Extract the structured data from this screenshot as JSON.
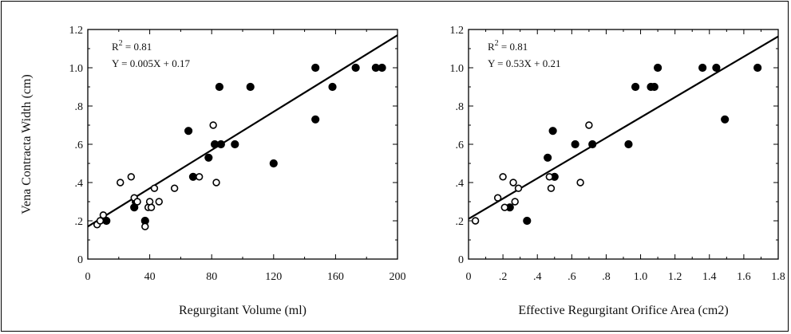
{
  "chart_data": [
    {
      "type": "scatter",
      "title": "",
      "xlabel": "Regurgitant Volume (ml)",
      "ylabel": "Vena Contracta Width (cm)",
      "xlim": [
        0,
        200
      ],
      "ylim": [
        0,
        1.2
      ],
      "x_ticks": [
        0,
        40,
        80,
        120,
        160,
        200
      ],
      "x_tick_labels": [
        "0",
        "40",
        "80",
        "120",
        "160",
        "200"
      ],
      "y_ticks": [
        0,
        0.2,
        0.4,
        0.6,
        0.8,
        1.0,
        1.2
      ],
      "y_tick_labels": [
        "0",
        ".2",
        ".4",
        ".6",
        ".8",
        "1.0",
        "1.2"
      ],
      "grid": false,
      "series": [
        {
          "marker": "filled",
          "x": [
            12,
            30,
            31,
            37,
            65,
            68,
            78,
            82,
            85,
            86,
            95,
            105,
            120,
            147,
            147,
            158,
            173,
            186,
            190
          ],
          "y": [
            0.2,
            0.27,
            0.3,
            0.2,
            0.67,
            0.43,
            0.53,
            0.6,
            0.9,
            0.6,
            0.6,
            0.9,
            0.5,
            1.0,
            0.73,
            0.9,
            1.0,
            1.0,
            1.0
          ]
        },
        {
          "marker": "open",
          "x": [
            6,
            8,
            10,
            21,
            28,
            30,
            32,
            37,
            39,
            40,
            41,
            43,
            46,
            56,
            72,
            81,
            83
          ],
          "y": [
            0.18,
            0.2,
            0.23,
            0.4,
            0.43,
            0.32,
            0.3,
            0.17,
            0.27,
            0.3,
            0.27,
            0.37,
            0.3,
            0.37,
            0.43,
            0.7,
            0.4
          ]
        }
      ],
      "regression": {
        "slope": 0.005,
        "intercept": 0.17
      },
      "annotations": {
        "r2_prefix": "R",
        "r2_sup": "2",
        "r2_value": "= 0.81",
        "equation": "Y = 0.005X + 0.17"
      }
    },
    {
      "type": "scatter",
      "title": "",
      "xlabel": "Effective Regurgitant Orifice Area (cm2)",
      "ylabel": "",
      "xlim": [
        0,
        1.8
      ],
      "ylim": [
        0,
        1.2
      ],
      "x_ticks": [
        0,
        0.2,
        0.4,
        0.6,
        0.8,
        1.0,
        1.2,
        1.4,
        1.6,
        1.8
      ],
      "x_tick_labels": [
        "0",
        ".2",
        ".4",
        ".6",
        ".8",
        "1.0",
        "1.2",
        "1.4",
        "1.6",
        "1.8"
      ],
      "y_ticks": [
        0,
        0.2,
        0.4,
        0.6,
        0.8,
        1.0,
        1.2
      ],
      "y_tick_labels": [
        "0",
        ".2",
        ".4",
        ".6",
        ".8",
        "1.0",
        "1.2"
      ],
      "grid": false,
      "series": [
        {
          "marker": "filled",
          "x": [
            0.24,
            0.34,
            0.46,
            0.49,
            0.5,
            0.62,
            0.72,
            0.93,
            0.97,
            1.06,
            1.08,
            1.1,
            1.36,
            1.44,
            1.49,
            1.68
          ],
          "y": [
            0.27,
            0.2,
            0.53,
            0.67,
            0.43,
            0.6,
            0.6,
            0.6,
            0.9,
            0.9,
            0.9,
            1.0,
            1.0,
            1.0,
            0.73,
            1.0
          ],
          "x_extra": [],
          "y_extra": []
        },
        {
          "marker": "open",
          "x": [
            0.04,
            0.17,
            0.2,
            0.21,
            0.26,
            0.27,
            0.29,
            0.47,
            0.48,
            0.65,
            0.7
          ],
          "y": [
            0.2,
            0.32,
            0.43,
            0.27,
            0.4,
            0.3,
            0.37,
            0.43,
            0.37,
            0.4,
            0.7
          ]
        }
      ],
      "regression": {
        "slope": 0.53,
        "intercept": 0.21
      },
      "annotations": {
        "r2_prefix": "R",
        "r2_sup": "2",
        "r2_value": "= 0.81",
        "equation": "Y = 0.53X + 0.21"
      }
    }
  ]
}
